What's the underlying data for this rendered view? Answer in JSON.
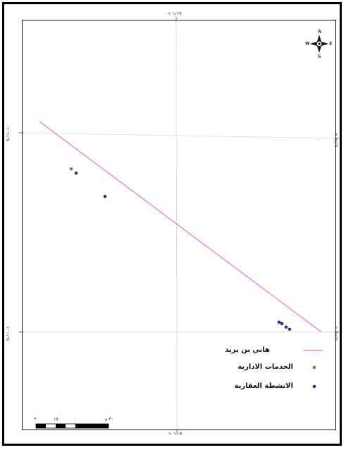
{
  "grid": {
    "top_labels": [
      "٤٦°٣٠'٠\"E"
    ],
    "bottom_labels": [
      "٤٦°٣٠'٠\"E"
    ],
    "left_labels": [
      "٢٤°٣٠'٠\"N",
      "٢٤°٢٠'٠\"N"
    ],
    "right_labels": [
      "٢٤°٣٠'٠\"N",
      "٢٤°٢٠'٠\"N"
    ]
  },
  "north_arrow": {
    "n": "N",
    "s": "S",
    "e": "E",
    "w": "W"
  },
  "legend": [
    {
      "label": "هاني بن يزيد",
      "symbol": "line",
      "color": "#e58be0"
    },
    {
      "label": "الخدمات الادارية",
      "symbol": "dot",
      "color": "#a0604a"
    },
    {
      "label": "الانشطة العقارية",
      "symbol": "dot",
      "color": "#2d2f8f"
    }
  ],
  "scale_bar": {
    "labels": [
      "٣٠",
      "١٥",
      "٠",
      "٣٠ م"
    ]
  },
  "colors": {
    "road": "#e58be0",
    "admin": "#a0604a",
    "realestate": "#2d2f8f"
  }
}
